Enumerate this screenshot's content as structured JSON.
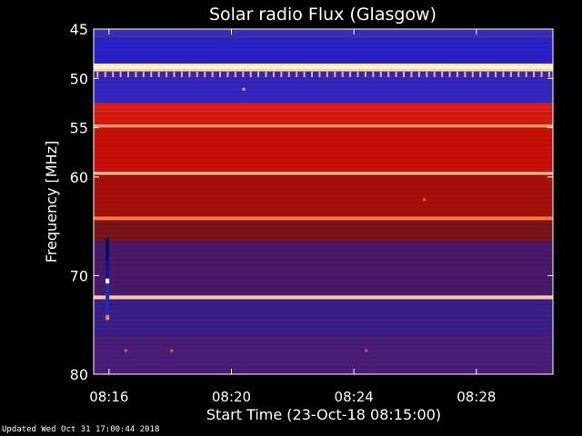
{
  "chart_data": {
    "type": "heatmap",
    "title": "Solar radio Flux (Glasgow)",
    "xlabel": "Start Time (23-Oct-18 08:15:00)",
    "ylabel": "Frequency [MHz]",
    "updated": "Updated Wed Oct 31 17:00:44 2018",
    "x_unit": "minutes after 08:15:00",
    "xlim": [
      0.5,
      15.5
    ],
    "ylim": [
      80,
      45
    ],
    "x_ticks": [
      {
        "t": 1,
        "label": "08:16"
      },
      {
        "t": 5,
        "label": "08:20"
      },
      {
        "t": 9,
        "label": "08:24"
      },
      {
        "t": 13,
        "label": "08:28"
      }
    ],
    "y_ticks": [
      {
        "f": 45,
        "label": "45"
      },
      {
        "f": 50,
        "label": "50"
      },
      {
        "f": 55,
        "label": "55"
      },
      {
        "f": 60,
        "label": "60"
      },
      {
        "f": 70,
        "label": "70"
      },
      {
        "f": 80,
        "label": "80"
      }
    ],
    "background_bands": [
      {
        "f0": 45.0,
        "f1": 46.0,
        "color": "#3a2fb5"
      },
      {
        "f0": 46.0,
        "f1": 48.5,
        "color": "#2a22c8"
      },
      {
        "f0": 48.5,
        "f1": 49.3,
        "color": "#ffe8b0"
      },
      {
        "f0": 49.3,
        "f1": 52.5,
        "color": "#3526c0"
      },
      {
        "f0": 52.5,
        "f1": 53.5,
        "color": "#e0201a"
      },
      {
        "f0": 53.5,
        "f1": 54.7,
        "color": "#d81a10"
      },
      {
        "f0": 54.7,
        "f1": 55.0,
        "color": "#ff8a50"
      },
      {
        "f0": 55.0,
        "f1": 59.5,
        "color": "#c81008"
      },
      {
        "f0": 59.5,
        "f1": 59.8,
        "color": "#ffb070"
      },
      {
        "f0": 59.8,
        "f1": 64.0,
        "color": "#a8100c"
      },
      {
        "f0": 64.0,
        "f1": 64.4,
        "color": "#ff6a30"
      },
      {
        "f0": 64.4,
        "f1": 66.5,
        "color": "#7a1418"
      },
      {
        "f0": 66.5,
        "f1": 72.0,
        "color": "#4a1a6a"
      },
      {
        "f0": 72.0,
        "f1": 72.4,
        "color": "#ffb888"
      },
      {
        "f0": 72.4,
        "f1": 76.0,
        "color": "#3a1e8a"
      },
      {
        "f0": 76.0,
        "f1": 80.0,
        "color": "#4a1e78"
      }
    ],
    "bright_lines": [
      {
        "f": 48.85,
        "color": "#fff4d0",
        "width": 0.4
      },
      {
        "f": 54.8,
        "color": "#ffa070",
        "width": 0.25
      },
      {
        "f": 59.6,
        "color": "#ffc090",
        "width": 0.25
      },
      {
        "f": 64.2,
        "color": "#ff7840",
        "width": 0.25
      },
      {
        "f": 72.2,
        "color": "#ffc8a0",
        "width": 0.25
      }
    ],
    "comb_line": {
      "f": 49.6,
      "spacing_min": 0.25,
      "color": "#ffb060"
    },
    "burst_column": {
      "t": 0.95,
      "f_range": [
        66.2,
        74.5
      ],
      "segments": [
        {
          "f0": 66.2,
          "f1": 68.5,
          "color": "#0a0a60"
        },
        {
          "f0": 68.5,
          "f1": 70.3,
          "color": "#1a1090"
        },
        {
          "f0": 70.3,
          "f1": 70.8,
          "color": "#ffffff"
        },
        {
          "f0": 70.8,
          "f1": 74.0,
          "color": "#2030b0"
        },
        {
          "f0": 74.0,
          "f1": 74.5,
          "color": "#ff8040"
        }
      ]
    },
    "specks": [
      {
        "t": 5.4,
        "f": 51.1,
        "color": "#ffa040"
      },
      {
        "t": 1.55,
        "f": 77.6,
        "color": "#ff5020"
      },
      {
        "t": 3.05,
        "f": 77.6,
        "color": "#ff5020"
      },
      {
        "t": 9.4,
        "f": 77.6,
        "color": "#ff5020"
      },
      {
        "t": 11.3,
        "f": 62.3,
        "color": "#ff6020"
      }
    ]
  }
}
